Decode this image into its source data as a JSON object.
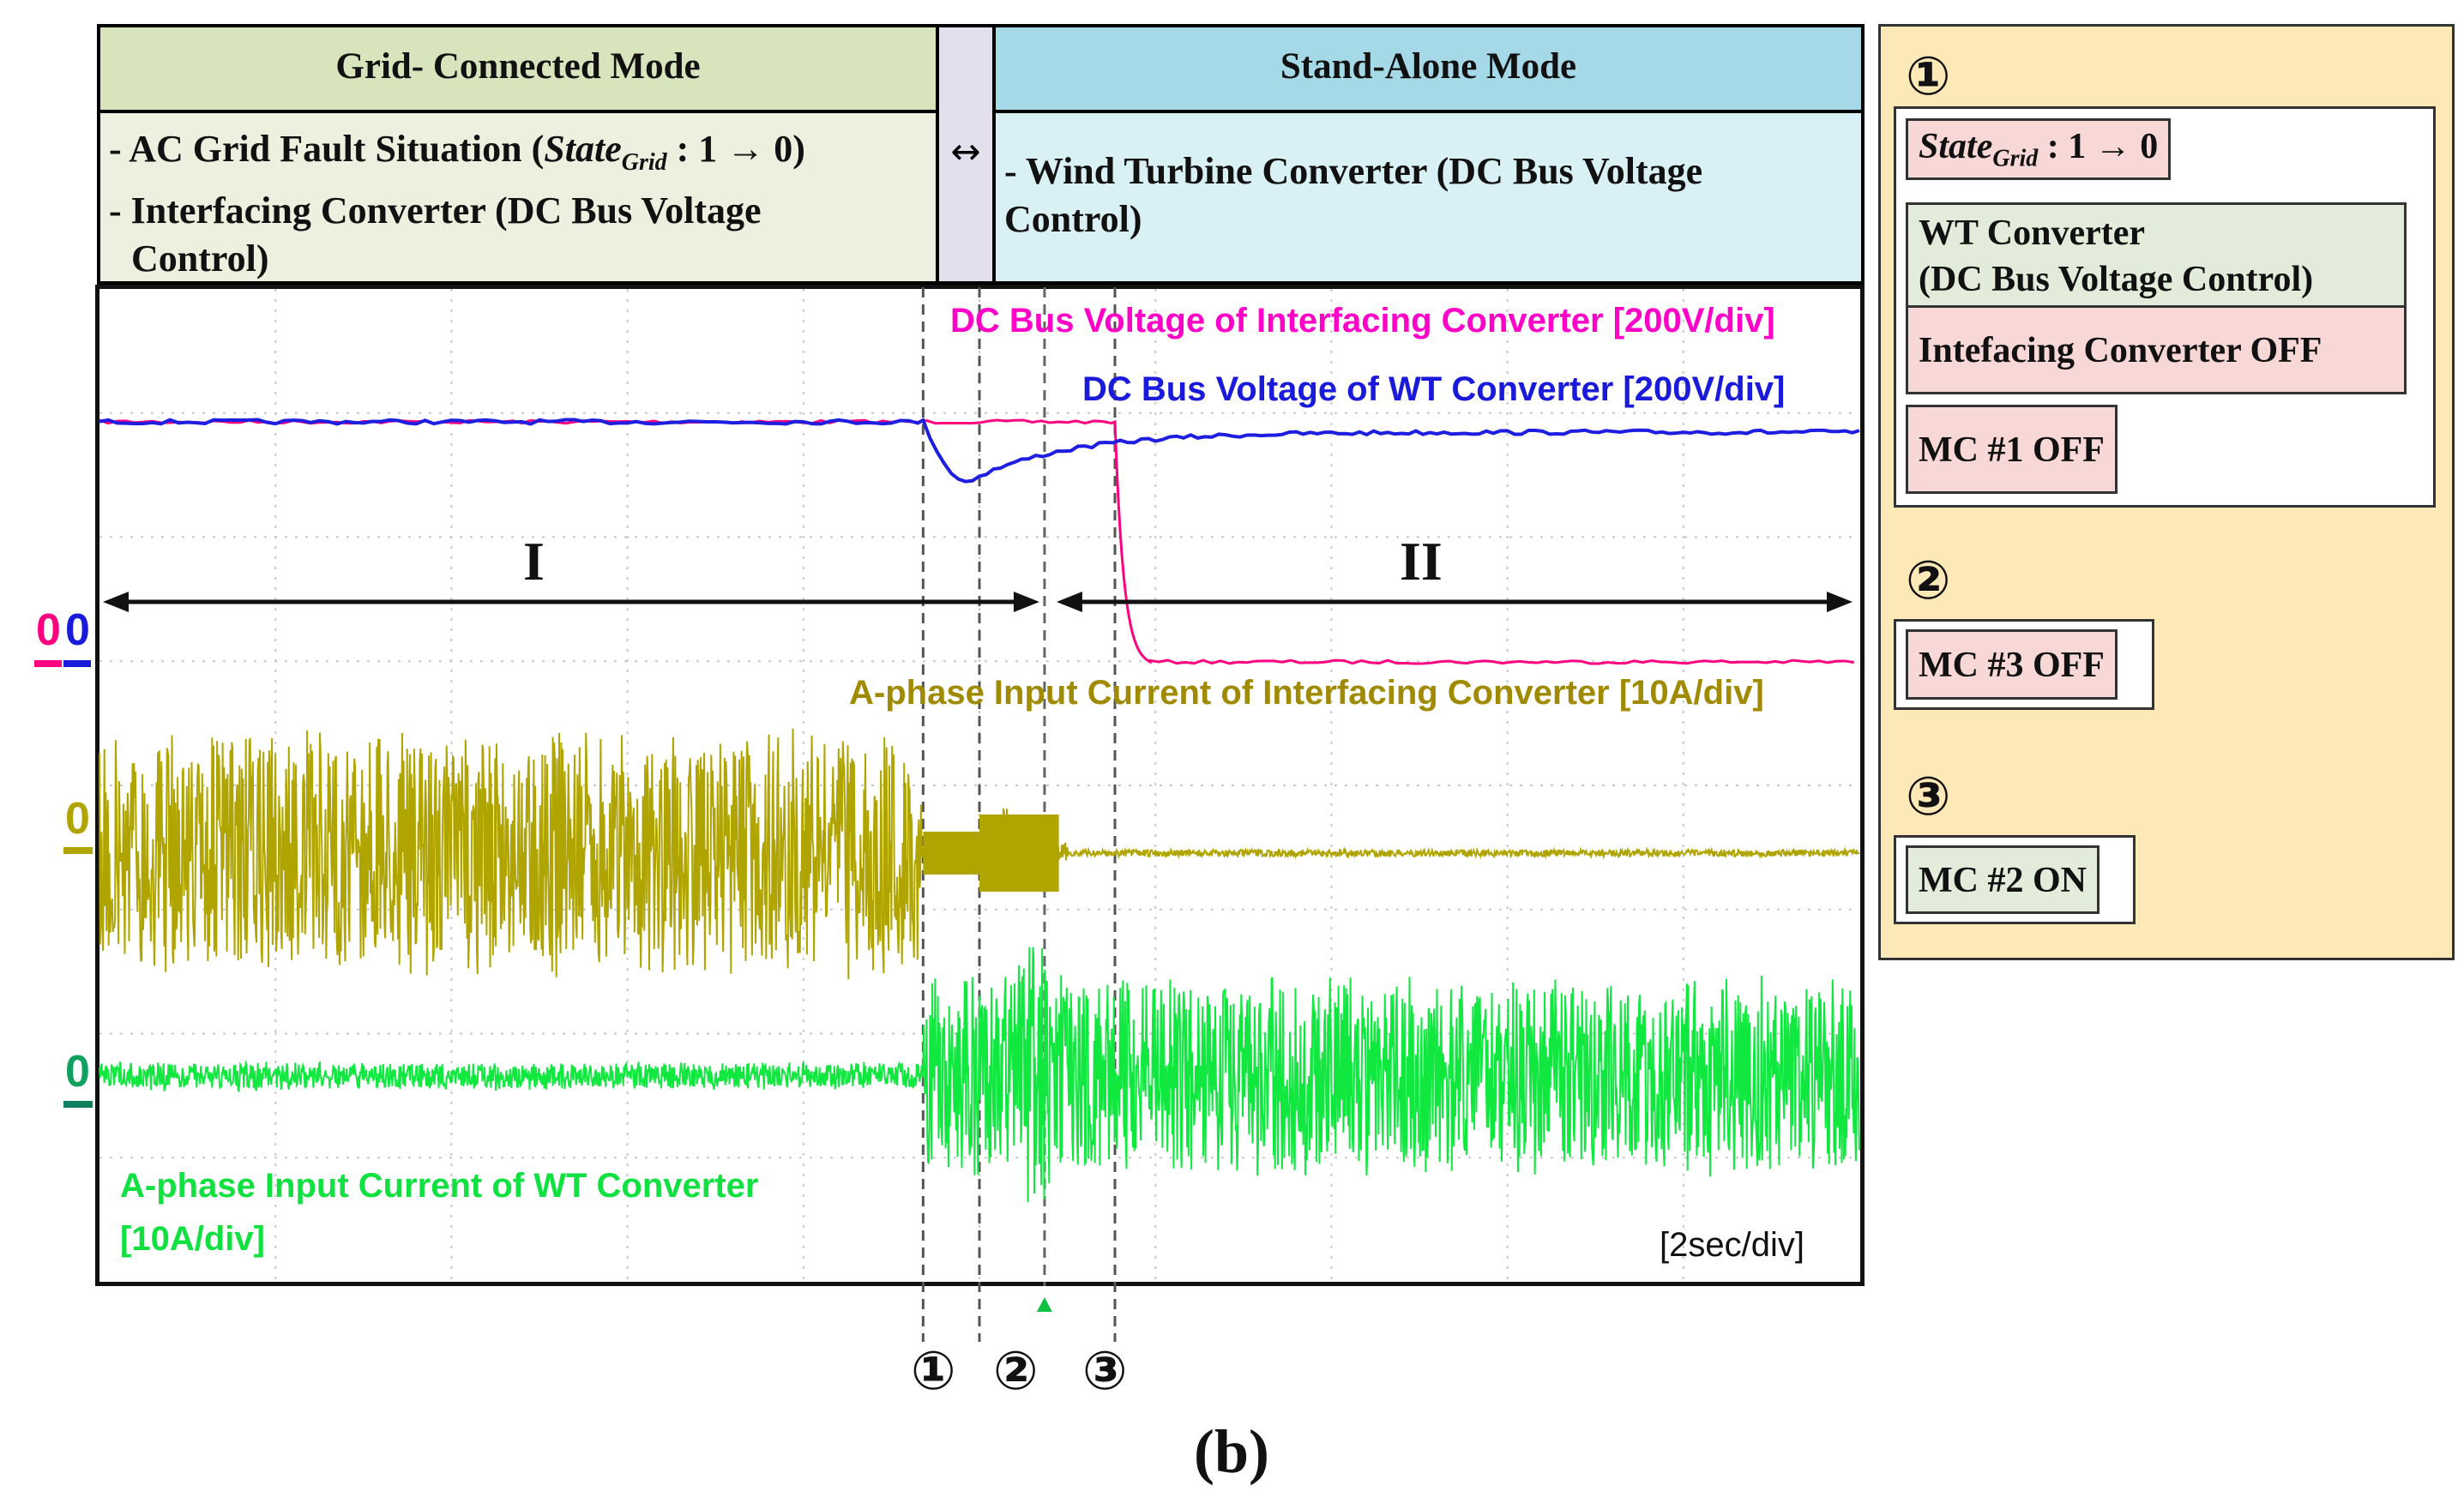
{
  "header": {
    "grid_mode_title": "Grid- Connected Mode",
    "grid_mode_line1_a": "- AC Grid Fault Situation (",
    "grid_mode_line1_state": "State",
    "grid_mode_line1_sub": "Grid",
    "grid_mode_line1_b": " : 1 → 0)",
    "grid_mode_line2": "- Interfacing Converter (DC Bus Voltage",
    "grid_mode_line3": "Control)",
    "transition_symbol": "↔",
    "standalone_title": "Stand-Alone Mode",
    "standalone_line1": "- Wind Turbine Converter (DC Bus Voltage",
    "standalone_line2": "Control)"
  },
  "legend": {
    "step1_marker": "①",
    "step1_state": "State",
    "step1_state_sub": "Grid",
    "step1_state_rest": " : 1 → 0",
    "step1_wt_line1": "WT Converter",
    "step1_wt_line2": "(DC Bus Voltage Control)",
    "step1_ic_off": "Intefacing Converter OFF",
    "step1_mc1": "MC #1 OFF",
    "step2_marker": "②",
    "step2_mc3": "MC #3 OFF",
    "step3_marker": "③",
    "step3_mc2": "MC #2 ON"
  },
  "scope": {
    "zero_marks": [
      "0",
      "0",
      "0",
      "0"
    ],
    "region_I": "I",
    "region_II": "II",
    "timebase": "[2sec/div]",
    "event_markers": [
      "①",
      "②",
      "③"
    ],
    "caption": "(b)"
  },
  "chart_data": {
    "type": "line",
    "xlabel": "[2sec/div]",
    "x_divisions": 10,
    "y_divisions": 8,
    "events": [
      "①",
      "②",
      "③"
    ],
    "series": [
      {
        "name": "DC Bus Voltage of Interfacing Converter [200V/div]",
        "color": "#ff0080",
        "level_before": 1.88,
        "level_after": 0.0
      },
      {
        "name": "DC Bus Voltage of WT Converter [200V/div]",
        "color": "#1e1ee0",
        "level_before": 1.88,
        "dip_min": 1.35,
        "level_after": 1.8
      },
      {
        "name": "A-phase Input Current of Interfacing Converter [10A/div]",
        "color": "#b0a500",
        "amplitude_before": 1.0,
        "amplitude_after": 0.05
      },
      {
        "name": "A-phase Input Current of WT Converter\n[10A/div]",
        "color": "#10e840",
        "amplitude_before": 0.15,
        "amplitude_after": 1.0
      }
    ]
  },
  "colors": {
    "grid_header_bg": "#d8e4bc",
    "grid_body_bg": "#ebf1de",
    "standalone_header_bg": "#a6d9e8",
    "standalone_body_bg": "#d9f0f5",
    "legend_bg": "#fde9b8",
    "pink_box": "#f8d7d7",
    "green_box": "#e3ecda"
  }
}
